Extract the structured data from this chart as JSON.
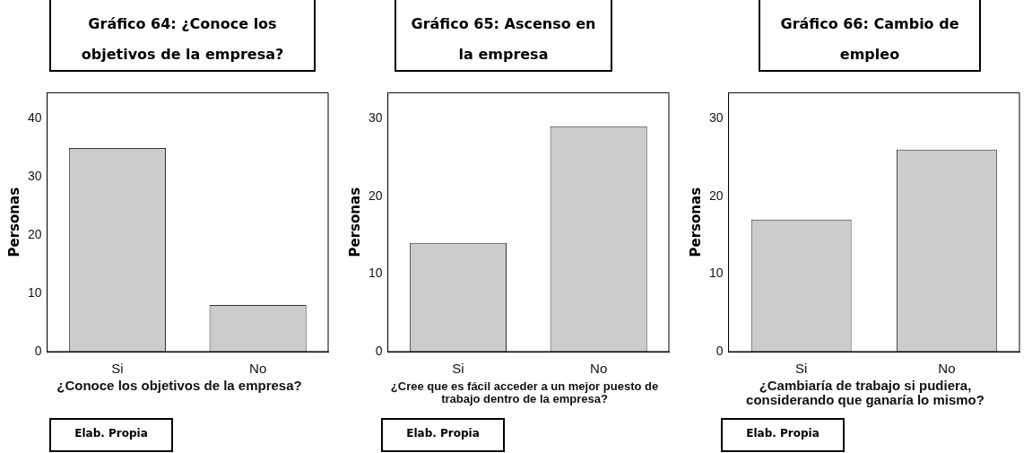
{
  "chart_data": [
    {
      "type": "bar",
      "title": "Gráfico 64: ¿Conoce los objetivos de la empresa?",
      "xlabel": "¿Conoce los objetivos de la empresa?",
      "ylabel": "Personas",
      "categories": [
        "Si",
        "No"
      ],
      "values": [
        35,
        8
      ],
      "color": "#cccccc",
      "ylim": [
        0,
        44.5
      ],
      "yticks": [
        0,
        10,
        20,
        30,
        40
      ],
      "annotations": [
        "Elab. Propia"
      ]
    },
    {
      "type": "bar",
      "title": "Gráfico 65: Ascenso en la empresa",
      "xlabel": "¿Cree que es fácil acceder a un mejor puesto de trabajo dentro de la empresa?",
      "ylabel": "Personas",
      "categories": [
        "Si",
        "No"
      ],
      "values": [
        14,
        29
      ],
      "color": "#cccccc",
      "ylim": [
        0,
        33.3
      ],
      "yticks": [
        0,
        10,
        20,
        30
      ],
      "annotations": [
        "Elab. Propia"
      ]
    },
    {
      "type": "bar",
      "title": "Gráfico 66: Cambio de empleo",
      "xlabel": "¿Cambiaría de trabajo si pudiera, considerando que ganaría lo mismo?",
      "ylabel": "Personas",
      "categories": [
        "Si",
        "No"
      ],
      "values": [
        17,
        26
      ],
      "color": "#cccccc",
      "ylim": [
        0,
        33.3
      ],
      "yticks": [
        0,
        10,
        20,
        30
      ],
      "annotations": [
        "Elab. Propia"
      ]
    }
  ]
}
